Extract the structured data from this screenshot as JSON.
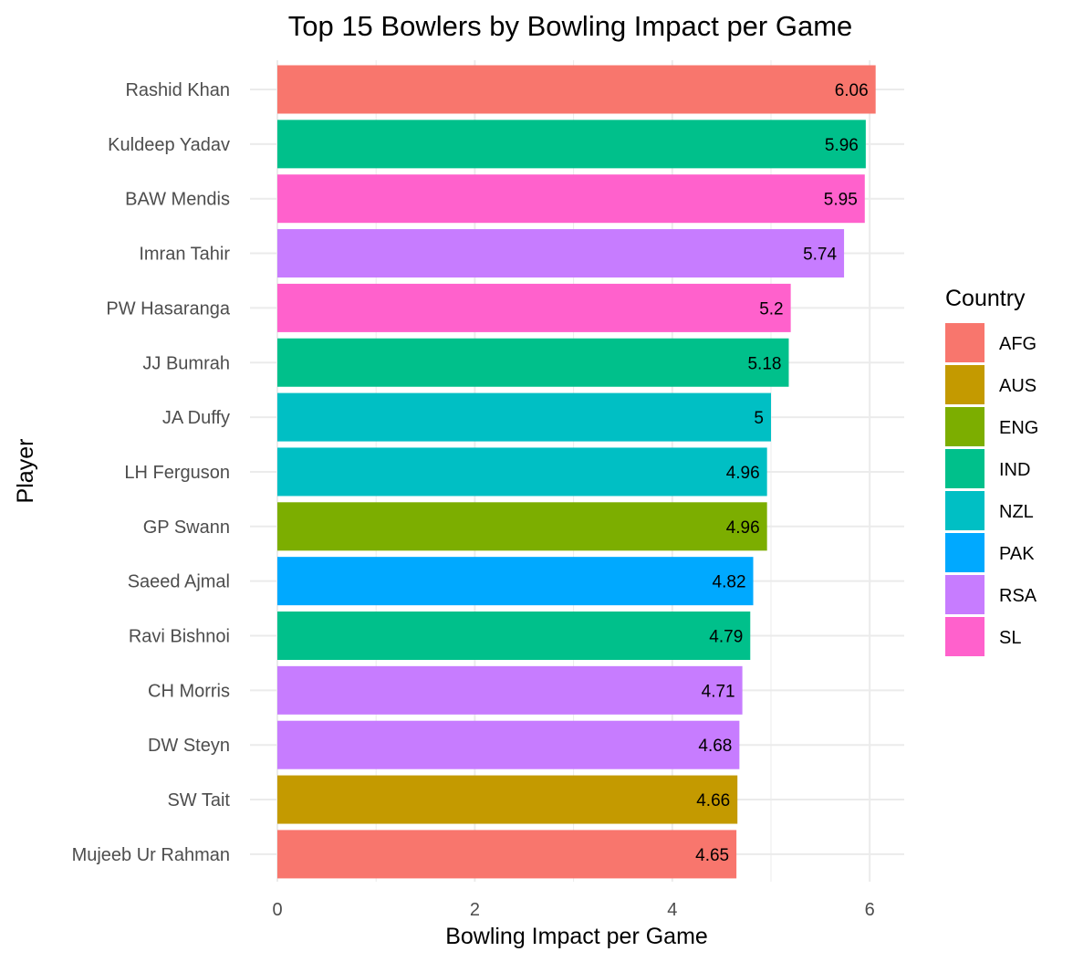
{
  "chart_data": {
    "type": "bar",
    "orientation": "horizontal",
    "title": "Top 15 Bowlers by Bowling Impact per Game",
    "xlabel": "Bowling Impact per Game",
    "ylabel": "Player",
    "xlim": [
      0,
      6.3
    ],
    "xticks": [
      0,
      2,
      4,
      6
    ],
    "grid": true,
    "legend": {
      "title": "Country",
      "placement": "right",
      "entries": [
        {
          "name": "AFG",
          "color": "#F8766D"
        },
        {
          "name": "AUS",
          "color": "#C49A00"
        },
        {
          "name": "ENG",
          "color": "#7CAE00"
        },
        {
          "name": "IND",
          "color": "#00C08B"
        },
        {
          "name": "NZL",
          "color": "#00BFC4"
        },
        {
          "name": "PAK",
          "color": "#00A9FF"
        },
        {
          "name": "RSA",
          "color": "#C77CFF"
        },
        {
          "name": "SL",
          "color": "#FF61CC"
        }
      ]
    },
    "bars": [
      {
        "player": "Rashid Khan",
        "value": 6.06,
        "label": "6.06",
        "country": "AFG"
      },
      {
        "player": "Kuldeep Yadav",
        "value": 5.96,
        "label": "5.96",
        "country": "IND"
      },
      {
        "player": "BAW Mendis",
        "value": 5.95,
        "label": "5.95",
        "country": "SL"
      },
      {
        "player": "Imran Tahir",
        "value": 5.74,
        "label": "5.74",
        "country": "RSA"
      },
      {
        "player": "PW Hasaranga",
        "value": 5.2,
        "label": "5.2",
        "country": "SL"
      },
      {
        "player": "JJ Bumrah",
        "value": 5.18,
        "label": "5.18",
        "country": "IND"
      },
      {
        "player": "JA Duffy",
        "value": 5.0,
        "label": "5",
        "country": "NZL"
      },
      {
        "player": "LH Ferguson",
        "value": 4.96,
        "label": "4.96",
        "country": "NZL"
      },
      {
        "player": "GP Swann",
        "value": 4.96,
        "label": "4.96",
        "country": "ENG"
      },
      {
        "player": "Saeed Ajmal",
        "value": 4.82,
        "label": "4.82",
        "country": "PAK"
      },
      {
        "player": "Ravi Bishnoi",
        "value": 4.79,
        "label": "4.79",
        "country": "IND"
      },
      {
        "player": "CH Morris",
        "value": 4.71,
        "label": "4.71",
        "country": "RSA"
      },
      {
        "player": "DW Steyn",
        "value": 4.68,
        "label": "4.68",
        "country": "RSA"
      },
      {
        "player": "SW Tait",
        "value": 4.66,
        "label": "4.66",
        "country": "AUS"
      },
      {
        "player": "Mujeeb Ur Rahman",
        "value": 4.65,
        "label": "4.65",
        "country": "AFG"
      }
    ]
  }
}
